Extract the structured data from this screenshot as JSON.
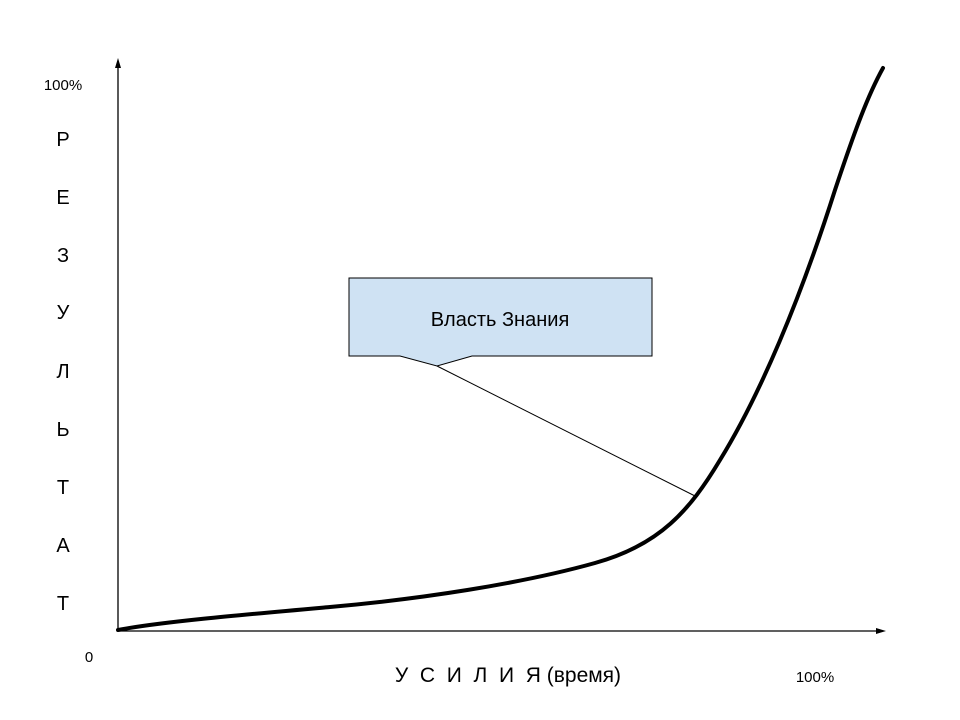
{
  "diagram": {
    "y_axis": {
      "max_label": "100%",
      "origin_label": "0",
      "title_letters": [
        "Р",
        "Е",
        "З",
        "У",
        "Л",
        "Ь",
        "Т",
        "А",
        "Т"
      ]
    },
    "x_axis": {
      "title": "У  С  И  Л  И  Я (время)",
      "max_label": "100%"
    },
    "curve": {
      "type": "exponential-growth"
    },
    "callout": {
      "text": "Власть Знания"
    },
    "colors": {
      "line": "#000000",
      "callout_fill": "#cfe2f3",
      "callout_border": "#000000",
      "background": "#ffffff"
    }
  }
}
